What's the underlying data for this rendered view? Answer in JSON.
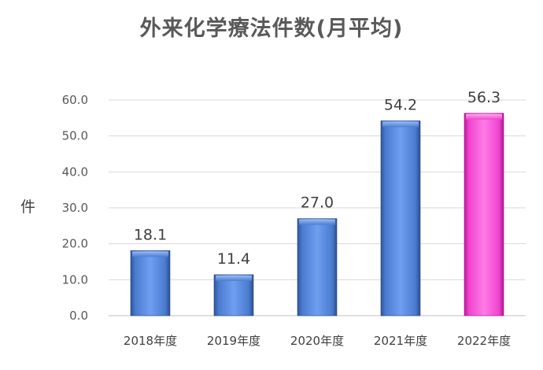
{
  "chart_data": {
    "type": "bar",
    "title": "外来化学療法件数(月平均)",
    "ylabel": "件",
    "xlabel": "",
    "categories": [
      "2018年度",
      "2019年度",
      "2020年度",
      "2021年度",
      "2022年度"
    ],
    "values": [
      18.1,
      11.4,
      27.0,
      54.2,
      56.3
    ],
    "value_labels": [
      "18.1",
      "11.4",
      "27.0",
      "54.2",
      "56.3"
    ],
    "ylim": [
      0,
      60
    ],
    "yticks": [
      "0.0",
      "10.0",
      "20.0",
      "30.0",
      "40.0",
      "50.0",
      "60.0"
    ],
    "grid": true,
    "legend": "none",
    "colors": {
      "default_bar": "#4f81d6",
      "highlight_bar": "#ff55dd",
      "grid": "#d9d9d9"
    },
    "highlight_index": 4
  }
}
